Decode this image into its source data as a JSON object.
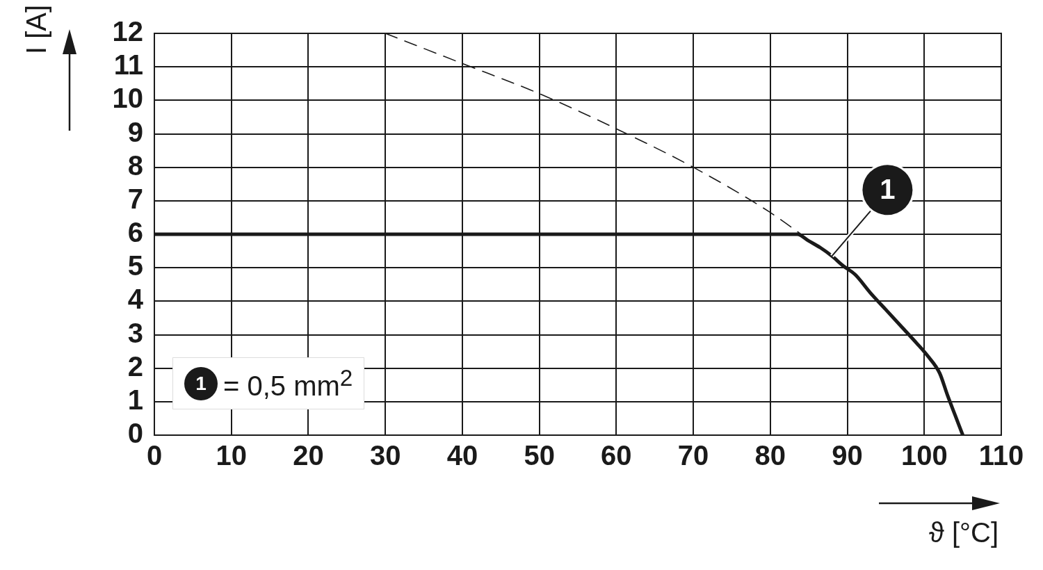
{
  "chart_data": {
    "type": "line",
    "xlabel": "ϑ [°C]",
    "ylabel": "I [A]",
    "series": [
      {
        "name": "1",
        "color": "#1a1a1a",
        "line_style": "solid",
        "x": [
          0,
          83.5,
          85,
          86.5,
          88,
          89.5,
          91,
          93,
          95,
          97,
          99,
          100.5,
          102,
          103,
          104,
          105
        ],
        "values": [
          6,
          6,
          5.8,
          5.6,
          5.35,
          5.05,
          4.8,
          4.25,
          3.75,
          3.25,
          2.75,
          2.35,
          1.85,
          1.2,
          0.6,
          0
        ]
      },
      {
        "color": "#1a1a1a",
        "line_style": "dashed",
        "x": [
          30,
          40,
          50,
          60,
          70,
          80,
          84
        ],
        "values": [
          12,
          11.1,
          10.2,
          9.15,
          8,
          6.65,
          6
        ]
      }
    ],
    "annotations": [
      "= 0,5 mm$^{2}$"
    ],
    "xlim": [
      0,
      110
    ],
    "xticks": [
      0,
      10,
      20,
      30,
      40,
      50,
      60,
      70,
      80,
      90,
      100,
      110
    ],
    "ylim": [
      0,
      12
    ],
    "yticks": [
      0,
      1,
      2,
      3,
      4,
      5,
      6,
      7,
      8,
      9,
      10,
      11,
      12
    ],
    "grid": true,
    "legend": false,
    "marker": "none"
  }
}
